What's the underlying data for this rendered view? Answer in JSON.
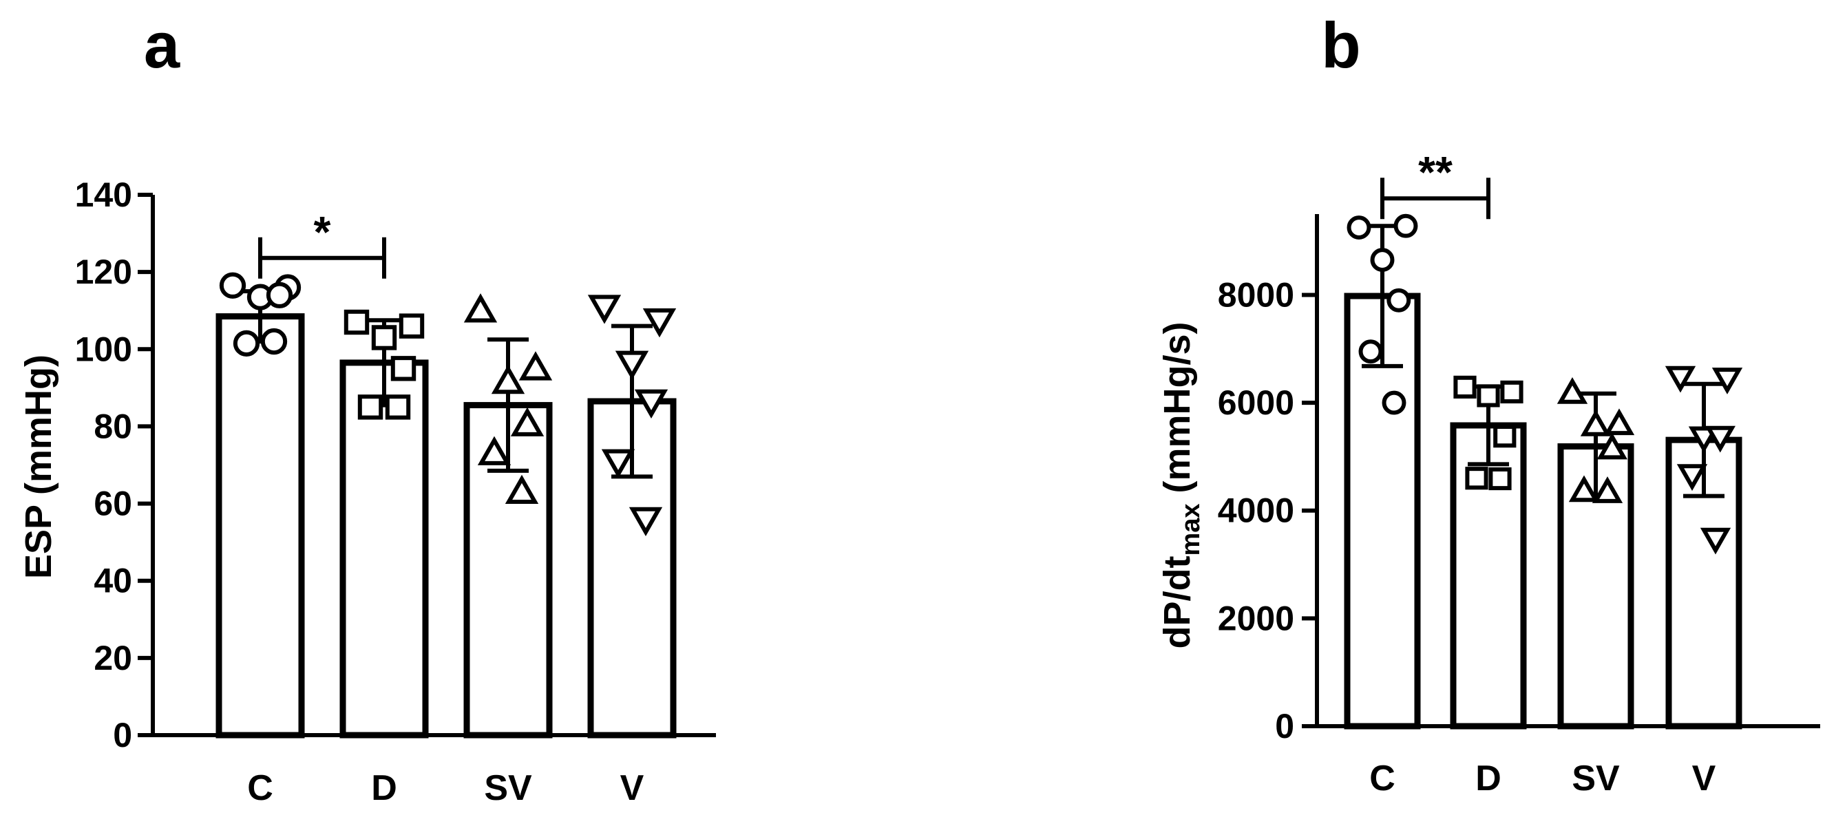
{
  "chart_data": [
    {
      "panel": "a",
      "type": "bar",
      "ylabel": "ESP (mmHg)",
      "ylim": [
        0,
        140
      ],
      "yticks": [
        "0",
        "20",
        "40",
        "60",
        "80",
        "100",
        "120",
        "140"
      ],
      "categories": [
        "C",
        "D",
        "SV",
        "V"
      ],
      "values": [
        108.5,
        96.5,
        85.5,
        86.5
      ],
      "error_sd": [
        6.5,
        11,
        17,
        19.5
      ],
      "markers": [
        "circle",
        "square",
        "triangle-up",
        "triangle-down"
      ],
      "points": [
        [
          116.5,
          116,
          113.5,
          114,
          101.5,
          102
        ],
        [
          107,
          106,
          103,
          95,
          85,
          85
        ],
        [
          110,
          95,
          91.5,
          80.5,
          73,
          63
        ],
        [
          111,
          107.5,
          96.5,
          86.5,
          71,
          56
        ]
      ],
      "significance": {
        "from": "C",
        "to": "D",
        "label": "*"
      },
      "grid": false,
      "legend": "none"
    },
    {
      "panel": "b",
      "type": "bar",
      "ylabel": "dP/dt",
      "ylabel_subscript": "max",
      "ylabel_unit": " (mmHg/s)",
      "ylim": [
        0,
        9500
      ],
      "yticks": [
        "0",
        "2000",
        "4000",
        "6000",
        "8000"
      ],
      "categories": [
        "C",
        "D",
        "SV",
        "V"
      ],
      "values": [
        7980,
        5580,
        5190,
        5310
      ],
      "error_sd": [
        1300,
        720,
        980,
        1040
      ],
      "markers": [
        "circle",
        "square",
        "triangle-up",
        "triangle-down"
      ],
      "points": [
        [
          9250,
          9280,
          8650,
          7900,
          6950,
          6000
        ],
        [
          6290,
          6200,
          6130,
          5380,
          4600,
          4590
        ],
        [
          6180,
          5600,
          5580,
          5150,
          4360,
          4340
        ],
        [
          6480,
          6450,
          5360,
          5370,
          4660,
          3480
        ]
      ],
      "significance": {
        "from": "C",
        "to": "D",
        "label": "**"
      },
      "grid": false,
      "legend": "none"
    }
  ]
}
